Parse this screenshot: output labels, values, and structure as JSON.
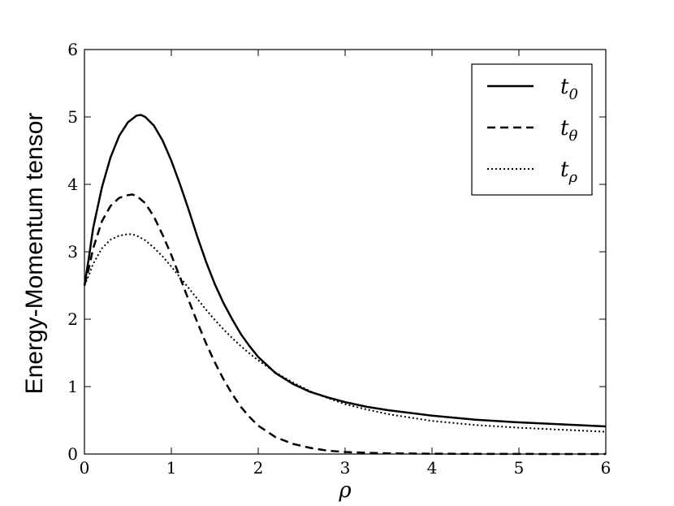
{
  "chart_data": {
    "type": "line",
    "title": "",
    "xlabel": "ρ",
    "ylabel": "Energy-Momentum tensor",
    "xlim": [
      0,
      6
    ],
    "ylim": [
      0,
      6
    ],
    "x_ticks": [
      "0",
      "1",
      "2",
      "3",
      "4",
      "5",
      "6"
    ],
    "y_ticks": [
      "0",
      "1",
      "2",
      "3",
      "4",
      "5",
      "6"
    ],
    "grid": false,
    "legend_position": "top-right",
    "series": [
      {
        "name": "t0",
        "legend_base": "t",
        "legend_sub": "0",
        "style": "solid",
        "color": "#000000",
        "x": [
          0,
          0.05,
          0.1,
          0.2,
          0.3,
          0.4,
          0.5,
          0.6,
          0.65,
          0.7,
          0.8,
          0.9,
          1.0,
          1.1,
          1.2,
          1.3,
          1.4,
          1.5,
          1.6,
          1.7,
          1.8,
          1.9,
          2.0,
          2.2,
          2.4,
          2.6,
          2.8,
          3.0,
          3.25,
          3.5,
          4.0,
          4.5,
          5.0,
          5.5,
          6.0
        ],
        "y": [
          2.5,
          2.9,
          3.35,
          3.95,
          4.4,
          4.72,
          4.92,
          5.02,
          5.03,
          5.0,
          4.87,
          4.65,
          4.35,
          4.0,
          3.62,
          3.22,
          2.85,
          2.52,
          2.24,
          2.0,
          1.78,
          1.6,
          1.44,
          1.2,
          1.04,
          0.92,
          0.84,
          0.77,
          0.7,
          0.65,
          0.57,
          0.51,
          0.47,
          0.44,
          0.41
        ]
      },
      {
        "name": "tθ",
        "legend_base": "t",
        "legend_sub": "θ",
        "style": "dashed",
        "color": "#000000",
        "x": [
          0,
          0.05,
          0.1,
          0.2,
          0.3,
          0.4,
          0.5,
          0.55,
          0.6,
          0.7,
          0.8,
          0.9,
          1.0,
          1.1,
          1.2,
          1.3,
          1.4,
          1.5,
          1.6,
          1.7,
          1.8,
          1.9,
          2.0,
          2.2,
          2.4,
          2.6,
          2.8,
          3.0,
          3.25,
          3.5,
          4.0,
          4.5,
          5.0,
          5.5,
          6.0
        ],
        "y": [
          2.5,
          2.75,
          3.05,
          3.45,
          3.68,
          3.8,
          3.84,
          3.85,
          3.83,
          3.72,
          3.52,
          3.25,
          2.95,
          2.62,
          2.28,
          1.95,
          1.64,
          1.36,
          1.11,
          0.89,
          0.7,
          0.55,
          0.42,
          0.25,
          0.15,
          0.09,
          0.05,
          0.03,
          0.018,
          0.01,
          0.005,
          0.002,
          0.001,
          0.0,
          0.0
        ]
      },
      {
        "name": "tρ",
        "legend_base": "t",
        "legend_sub": "ρ",
        "style": "dotted",
        "color": "#000000",
        "x": [
          0,
          0.05,
          0.1,
          0.2,
          0.3,
          0.4,
          0.5,
          0.55,
          0.6,
          0.7,
          0.8,
          0.9,
          1.0,
          1.1,
          1.2,
          1.3,
          1.4,
          1.5,
          1.6,
          1.7,
          1.8,
          1.9,
          2.0,
          2.2,
          2.4,
          2.6,
          2.8,
          3.0,
          3.25,
          3.5,
          4.0,
          4.5,
          5.0,
          5.5,
          6.0
        ],
        "y": [
          2.5,
          2.65,
          2.82,
          3.05,
          3.18,
          3.24,
          3.26,
          3.26,
          3.24,
          3.17,
          3.06,
          2.93,
          2.78,
          2.62,
          2.46,
          2.3,
          2.14,
          1.99,
          1.85,
          1.72,
          1.6,
          1.49,
          1.39,
          1.21,
          1.06,
          0.93,
          0.83,
          0.74,
          0.66,
          0.59,
          0.49,
          0.43,
          0.39,
          0.36,
          0.33
        ]
      }
    ]
  }
}
